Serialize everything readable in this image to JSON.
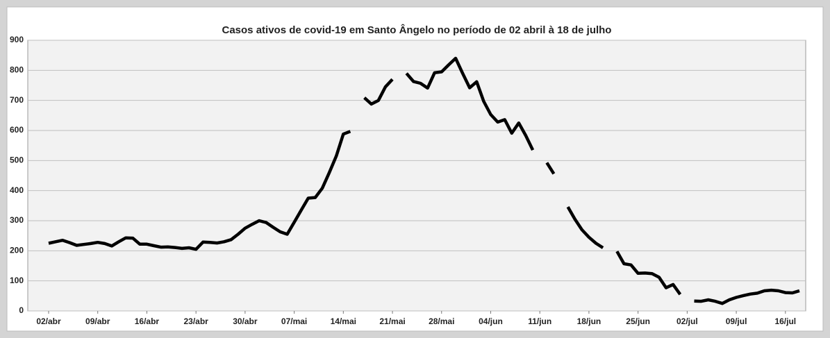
{
  "chart_data": {
    "type": "line",
    "title": "Casos ativos de covid-19 em Santo Ângelo no período de 02 abril à 18 de julho",
    "categories": [
      "02/abr",
      null,
      null,
      null,
      null,
      null,
      null,
      "09/abr",
      null,
      null,
      null,
      null,
      null,
      null,
      "16/abr",
      null,
      null,
      null,
      null,
      null,
      null,
      "23/abr",
      null,
      null,
      null,
      null,
      null,
      null,
      "30/abr",
      null,
      null,
      null,
      null,
      null,
      null,
      "07/mai",
      null,
      null,
      null,
      null,
      null,
      null,
      "14/mai",
      null,
      null,
      null,
      null,
      null,
      null,
      "21/mai",
      null,
      null,
      null,
      null,
      null,
      null,
      "28/mai",
      null,
      null,
      null,
      null,
      null,
      null,
      "04/jun",
      null,
      null,
      null,
      null,
      null,
      null,
      "11/jun",
      null,
      null,
      null,
      null,
      null,
      null,
      "18/jun",
      null,
      null,
      null,
      null,
      null,
      null,
      "25/jun",
      null,
      null,
      null,
      null,
      null,
      null,
      "02/jul",
      null,
      null,
      null,
      null,
      null,
      null,
      "09/jul",
      null,
      null,
      null,
      null,
      null,
      null,
      "16/jul",
      null,
      null
    ],
    "series": [
      {
        "color": "#000000",
        "values": [
          225,
          230,
          235,
          227,
          218,
          221,
          224,
          228,
          224,
          216,
          230,
          243,
          242,
          222,
          222,
          217,
          212,
          213,
          211,
          208,
          210,
          205,
          229,
          228,
          226,
          230,
          237,
          255,
          275,
          288,
          300,
          294,
          278,
          263,
          255,
          295,
          335,
          375,
          377,
          408,
          460,
          515,
          588,
          597,
          null,
          709,
          688,
          700,
          745,
          770,
          null,
          790,
          763,
          757,
          741,
          792,
          795,
          818,
          840,
          790,
          742,
          762,
          697,
          653,
          628,
          636,
          591,
          625,
          583,
          535,
          null,
          493,
          456,
          null,
          346,
          305,
          270,
          245,
          225,
          210,
          null,
          198,
          157,
          153,
          125,
          126,
          124,
          112,
          77,
          88,
          55,
          null,
          33,
          32,
          37,
          32,
          25,
          37,
          45,
          51,
          56,
          59,
          67,
          69,
          67,
          61,
          60,
          67
        ]
      }
    ],
    "ylim": [
      0,
      900
    ],
    "yticks": [
      0,
      100,
      200,
      300,
      400,
      500,
      600,
      700,
      800,
      900
    ],
    "grid": true
  }
}
